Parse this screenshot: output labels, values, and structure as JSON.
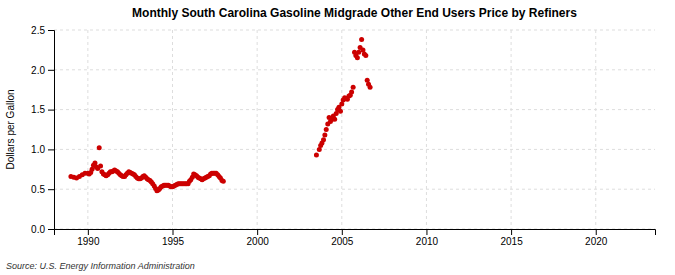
{
  "chart_data": {
    "type": "scatter",
    "title": "Monthly South Carolina Gasoline Midgrade Other End Users Price by Refiners",
    "y_label": "Dollars per Gallon",
    "annotations": [
      "Source: U.S. Energy Information Administration"
    ],
    "color": "#cc0000",
    "grid": true,
    "xlim": [
      1988.0,
      2023.5
    ],
    "ylim": [
      0.0,
      2.5
    ],
    "xticks": [
      1990,
      1995,
      2000,
      2005,
      2010,
      2015,
      2020
    ],
    "yticks": [
      {
        "value": 0.0,
        "label": "0.0"
      },
      0.5,
      {
        "value": 1.0,
        "label": "1.0"
      },
      1.5,
      {
        "value": 2.0,
        "label": "2.0"
      },
      2.5
    ],
    "x": [
      1989.0,
      1989.17,
      1989.33,
      1989.5,
      1989.67,
      1989.83,
      1990.0,
      1990.08,
      1990.17,
      1990.25,
      1990.33,
      1990.42,
      1990.5,
      1990.58,
      1990.67,
      1990.75,
      1990.83,
      1990.92,
      1991.0,
      1991.08,
      1991.17,
      1991.25,
      1991.33,
      1991.42,
      1991.5,
      1991.58,
      1991.67,
      1991.75,
      1991.83,
      1991.92,
      1992.0,
      1992.08,
      1992.17,
      1992.25,
      1992.33,
      1992.42,
      1992.5,
      1992.58,
      1992.67,
      1992.75,
      1992.83,
      1992.92,
      1993.0,
      1993.08,
      1993.17,
      1993.25,
      1993.33,
      1993.42,
      1993.5,
      1993.58,
      1993.67,
      1993.75,
      1993.83,
      1993.92,
      1994.0,
      1994.08,
      1994.17,
      1994.25,
      1994.33,
      1994.42,
      1994.5,
      1994.58,
      1994.67,
      1994.75,
      1994.83,
      1994.92,
      1995.0,
      1995.08,
      1995.17,
      1995.25,
      1995.33,
      1995.42,
      1995.5,
      1995.58,
      1995.67,
      1995.75,
      1995.83,
      1995.92,
      1996.0,
      1996.08,
      1996.17,
      1996.25,
      1996.33,
      1996.42,
      1996.5,
      1996.58,
      1996.67,
      1996.75,
      1996.83,
      1996.92,
      1997.0,
      1997.08,
      1997.17,
      1997.25,
      1997.33,
      1997.42,
      1997.5,
      1997.58,
      1997.67,
      1997.75,
      1997.83,
      1997.92,
      1998.0,
      2003.5,
      2003.67,
      2003.75,
      2003.83,
      2003.92,
      2004.0,
      2004.08,
      2004.17,
      2004.25,
      2004.33,
      2004.42,
      2004.5,
      2004.58,
      2004.67,
      2004.75,
      2004.83,
      2004.92,
      2005.0,
      2005.08,
      2005.17,
      2005.25,
      2005.33,
      2005.42,
      2005.5,
      2005.58,
      2005.67,
      2005.75,
      2005.83,
      2005.92,
      2006.0,
      2006.08,
      2006.17,
      2006.25,
      2006.33,
      2006.42,
      2006.5,
      2006.58,
      2006.67
    ],
    "values": [
      0.66,
      0.65,
      0.64,
      0.66,
      0.68,
      0.7,
      0.7,
      0.69,
      0.71,
      0.75,
      0.8,
      0.83,
      0.78,
      0.76,
      1.02,
      0.79,
      0.72,
      0.69,
      0.68,
      0.67,
      0.68,
      0.7,
      0.72,
      0.72,
      0.73,
      0.74,
      0.73,
      0.72,
      0.7,
      0.68,
      0.67,
      0.66,
      0.66,
      0.68,
      0.7,
      0.72,
      0.71,
      0.7,
      0.69,
      0.68,
      0.66,
      0.64,
      0.63,
      0.63,
      0.64,
      0.66,
      0.67,
      0.65,
      0.63,
      0.62,
      0.61,
      0.59,
      0.57,
      0.54,
      0.51,
      0.48,
      0.49,
      0.51,
      0.53,
      0.54,
      0.55,
      0.55,
      0.55,
      0.55,
      0.54,
      0.53,
      0.53,
      0.54,
      0.55,
      0.56,
      0.57,
      0.57,
      0.57,
      0.57,
      0.57,
      0.57,
      0.57,
      0.57,
      0.6,
      0.62,
      0.65,
      0.69,
      0.68,
      0.67,
      0.65,
      0.64,
      0.63,
      0.62,
      0.63,
      0.64,
      0.65,
      0.66,
      0.67,
      0.69,
      0.7,
      0.7,
      0.7,
      0.7,
      0.68,
      0.66,
      0.64,
      0.61,
      0.6,
      0.93,
      1.0,
      1.05,
      1.08,
      1.12,
      1.18,
      1.25,
      1.32,
      1.4,
      1.35,
      1.38,
      1.42,
      1.38,
      1.45,
      1.5,
      1.53,
      1.48,
      1.57,
      1.62,
      1.65,
      1.64,
      1.63,
      1.67,
      1.68,
      1.72,
      1.78,
      2.22,
      2.18,
      2.15,
      2.22,
      2.28,
      2.38,
      2.25,
      2.2,
      2.18,
      1.87,
      1.82,
      1.78
    ]
  }
}
